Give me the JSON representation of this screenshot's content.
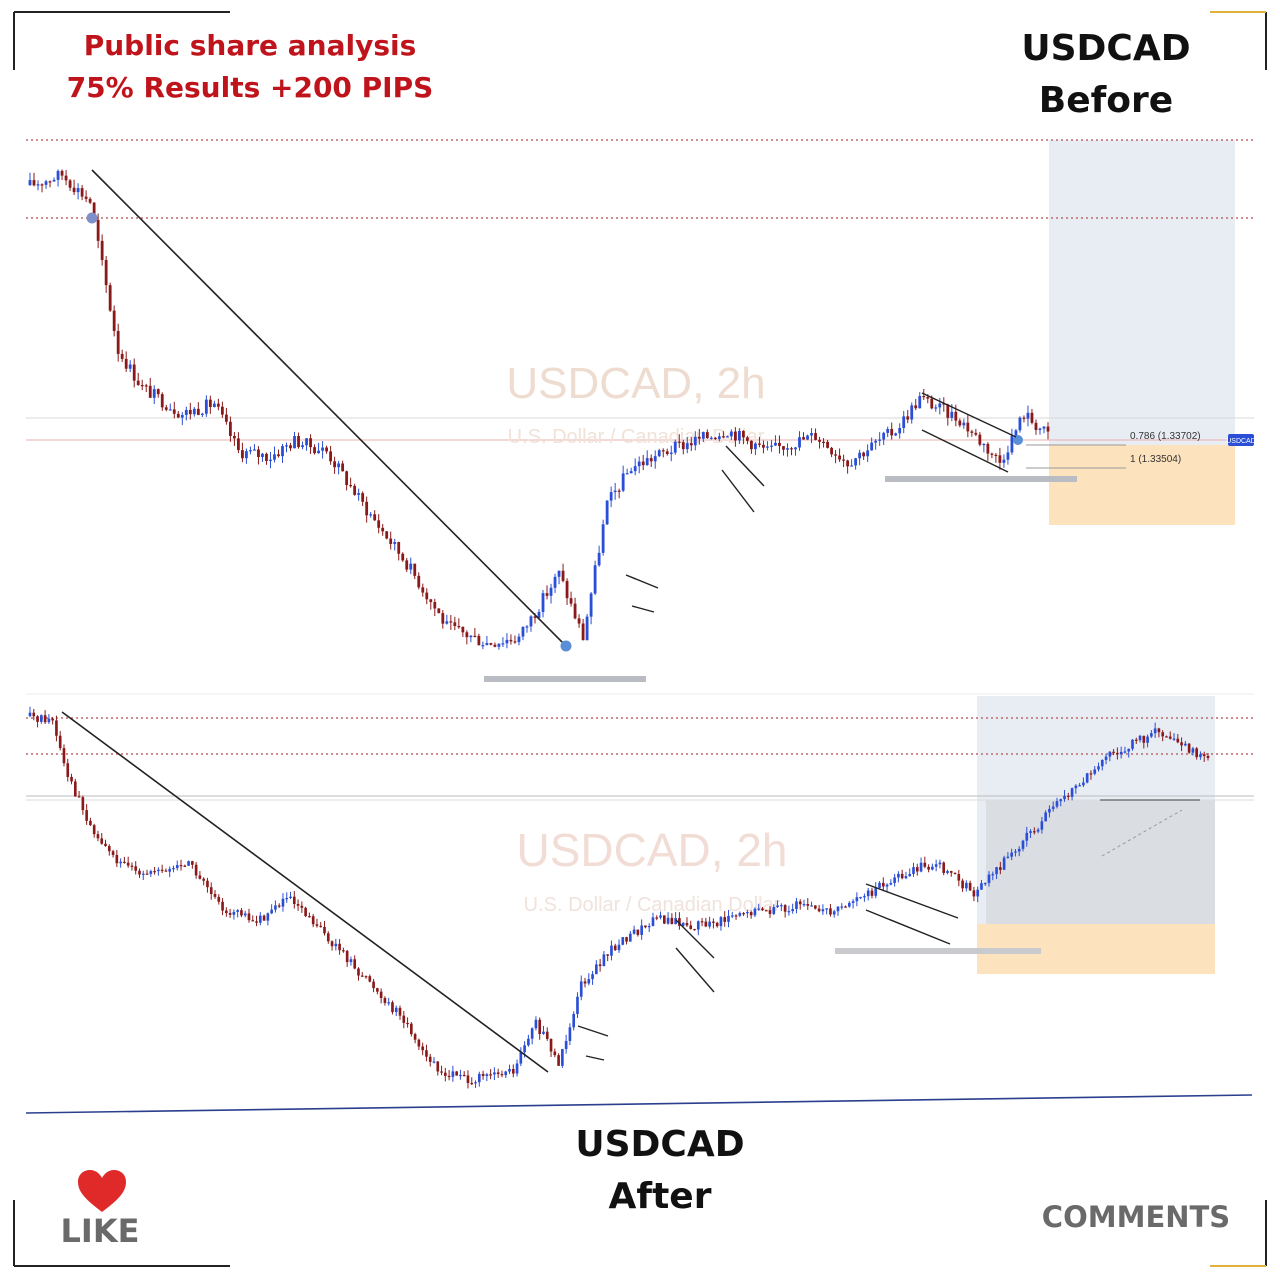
{
  "header": {
    "line1": "Public share analysis",
    "line2": "75% Results +200 PIPS"
  },
  "before_label": {
    "line1": "USDCAD",
    "line2": "Before"
  },
  "after_label": {
    "line1": "USDCAD",
    "line2": "After"
  },
  "footer": {
    "like_label": "LIKE",
    "comments_label": "COMMENTS"
  },
  "colors": {
    "headline": "#c0141c",
    "bull_candle": "#2a4fd6",
    "bear_candle": "#8a1a1a",
    "support_zone": "#b9bcc2",
    "target_zone": "#e8ecf3",
    "stop_zone": "#fde3bd",
    "heart": "#e02a2a"
  },
  "chart_data": [
    {
      "type": "candlestick",
      "title": "USDCAD, 2h",
      "subtitle": "U.S. Dollar / Canadian Dollar",
      "annotations": [
        {
          "label": "0.786 (1.33702)"
        },
        {
          "label": "1 (1.33504)"
        }
      ],
      "price_tag": "USDCAD",
      "path_anchors": [
        [
          0,
          0.93
        ],
        [
          8,
          0.95
        ],
        [
          15,
          0.9
        ],
        [
          18,
          0.78
        ],
        [
          22,
          0.62
        ],
        [
          28,
          0.55
        ],
        [
          38,
          0.5
        ],
        [
          46,
          0.52
        ],
        [
          52,
          0.43
        ],
        [
          60,
          0.42
        ],
        [
          66,
          0.45
        ],
        [
          74,
          0.43
        ],
        [
          84,
          0.32
        ],
        [
          94,
          0.22
        ],
        [
          104,
          0.1
        ],
        [
          114,
          0.07
        ],
        [
          122,
          0.08
        ],
        [
          132,
          0.2
        ],
        [
          138,
          0.08
        ],
        [
          144,
          0.33
        ],
        [
          150,
          0.4
        ],
        [
          162,
          0.44
        ],
        [
          174,
          0.47
        ],
        [
          184,
          0.43
        ],
        [
          196,
          0.46
        ],
        [
          204,
          0.41
        ],
        [
          216,
          0.47
        ],
        [
          222,
          0.53
        ],
        [
          232,
          0.49
        ],
        [
          242,
          0.41
        ],
        [
          248,
          0.5
        ],
        [
          254,
          0.46
        ]
      ]
    },
    {
      "type": "candlestick",
      "title": "USDCAD, 2h",
      "subtitle": "U.S. Dollar / Canadian Dollar",
      "path_anchors": [
        [
          0,
          0.96
        ],
        [
          6,
          0.95
        ],
        [
          10,
          0.82
        ],
        [
          16,
          0.68
        ],
        [
          24,
          0.59
        ],
        [
          34,
          0.57
        ],
        [
          42,
          0.6
        ],
        [
          50,
          0.49
        ],
        [
          60,
          0.45
        ],
        [
          68,
          0.51
        ],
        [
          78,
          0.42
        ],
        [
          88,
          0.32
        ],
        [
          98,
          0.22
        ],
        [
          108,
          0.08
        ],
        [
          118,
          0.06
        ],
        [
          128,
          0.08
        ],
        [
          134,
          0.2
        ],
        [
          140,
          0.1
        ],
        [
          146,
          0.3
        ],
        [
          156,
          0.4
        ],
        [
          166,
          0.46
        ],
        [
          176,
          0.44
        ],
        [
          186,
          0.46
        ],
        [
          194,
          0.48
        ],
        [
          204,
          0.49
        ],
        [
          212,
          0.48
        ],
        [
          222,
          0.52
        ],
        [
          232,
          0.57
        ],
        [
          240,
          0.6
        ],
        [
          250,
          0.52
        ],
        [
          260,
          0.62
        ],
        [
          272,
          0.74
        ],
        [
          286,
          0.86
        ],
        [
          298,
          0.92
        ],
        [
          306,
          0.88
        ],
        [
          312,
          0.86
        ]
      ]
    }
  ]
}
